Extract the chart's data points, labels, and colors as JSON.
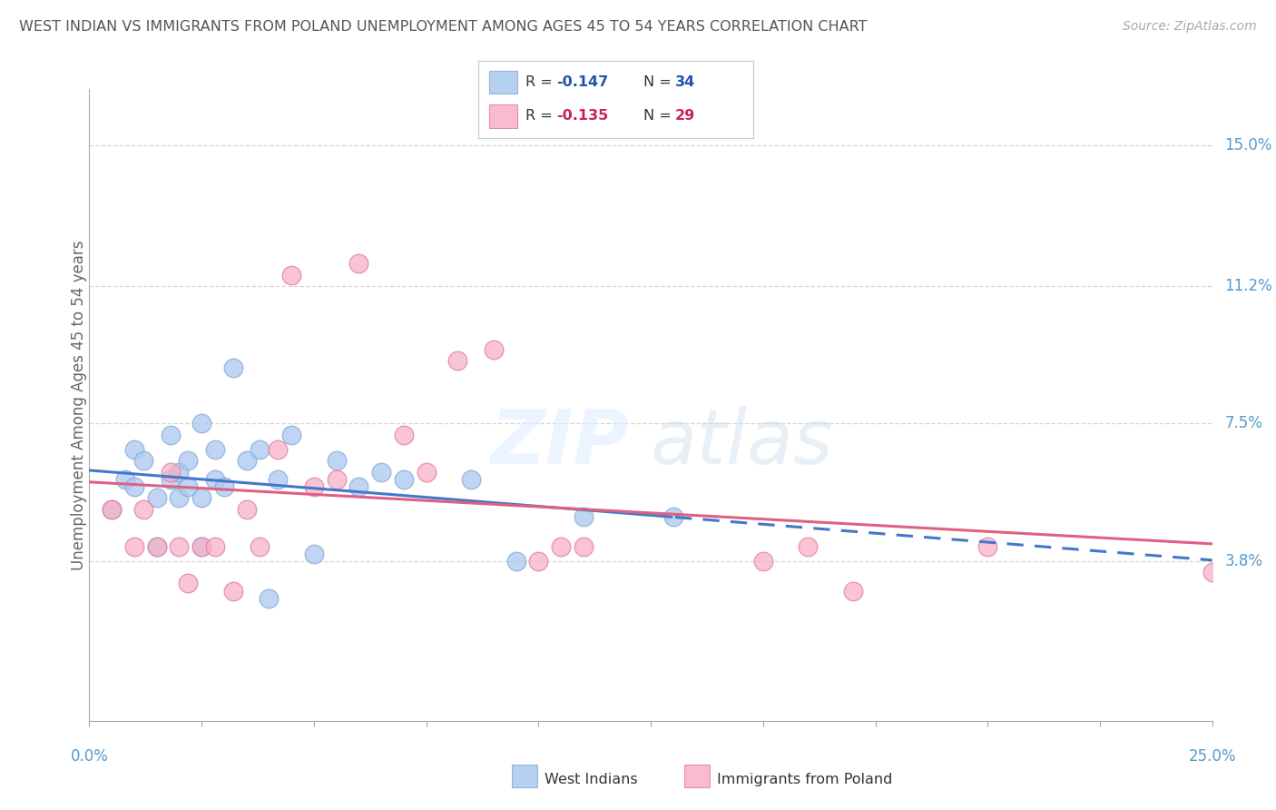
{
  "title": "WEST INDIAN VS IMMIGRANTS FROM POLAND UNEMPLOYMENT AMONG AGES 45 TO 54 YEARS CORRELATION CHART",
  "source": "Source: ZipAtlas.com",
  "ylabel": "Unemployment Among Ages 45 to 54 years",
  "xlim": [
    0.0,
    0.25
  ],
  "ylim": [
    -0.005,
    0.165
  ],
  "yticks": [
    0.038,
    0.075,
    0.112,
    0.15
  ],
  "ytick_labels": [
    "3.8%",
    "7.5%",
    "11.2%",
    "15.0%"
  ],
  "xticks": [
    0.0,
    0.025,
    0.05,
    0.075,
    0.1,
    0.125,
    0.15,
    0.175,
    0.2,
    0.225,
    0.25
  ],
  "grid_color": "#cccccc",
  "bg_color": "#ffffff",
  "blue_fill": "#aac8f0",
  "blue_edge": "#88aad8",
  "blue_line": "#4477cc",
  "pink_fill": "#f8b0c8",
  "pink_edge": "#e080a0",
  "pink_line": "#e06080",
  "title_color": "#555555",
  "right_label_color": "#5599cc",
  "legend_R1": "-0.147",
  "legend_N1": "34",
  "legend_R2": "-0.135",
  "legend_N2": "29",
  "blue_text_color": "#2255aa",
  "pink_text_color": "#cc2255",
  "west_indian_x": [
    0.005,
    0.008,
    0.01,
    0.01,
    0.012,
    0.015,
    0.015,
    0.018,
    0.018,
    0.02,
    0.02,
    0.022,
    0.022,
    0.025,
    0.025,
    0.025,
    0.028,
    0.028,
    0.03,
    0.032,
    0.035,
    0.038,
    0.04,
    0.042,
    0.045,
    0.05,
    0.055,
    0.06,
    0.065,
    0.07,
    0.085,
    0.095,
    0.11,
    0.13
  ],
  "west_indian_y": [
    0.052,
    0.06,
    0.058,
    0.068,
    0.065,
    0.042,
    0.055,
    0.072,
    0.06,
    0.062,
    0.055,
    0.058,
    0.065,
    0.042,
    0.055,
    0.075,
    0.06,
    0.068,
    0.058,
    0.09,
    0.065,
    0.068,
    0.028,
    0.06,
    0.072,
    0.04,
    0.065,
    0.058,
    0.062,
    0.06,
    0.06,
    0.038,
    0.05,
    0.05
  ],
  "poland_x": [
    0.005,
    0.01,
    0.012,
    0.015,
    0.018,
    0.02,
    0.022,
    0.025,
    0.028,
    0.032,
    0.035,
    0.038,
    0.042,
    0.045,
    0.05,
    0.055,
    0.06,
    0.07,
    0.075,
    0.082,
    0.09,
    0.1,
    0.105,
    0.11,
    0.15,
    0.16,
    0.17,
    0.2,
    0.25
  ],
  "poland_y": [
    0.052,
    0.042,
    0.052,
    0.042,
    0.062,
    0.042,
    0.032,
    0.042,
    0.042,
    0.03,
    0.052,
    0.042,
    0.068,
    0.115,
    0.058,
    0.06,
    0.118,
    0.072,
    0.062,
    0.092,
    0.095,
    0.038,
    0.042,
    0.042,
    0.038,
    0.042,
    0.03,
    0.042,
    0.035
  ],
  "marker_size": 220,
  "watermark_text": "ZIP",
  "watermark_text2": "atlas"
}
